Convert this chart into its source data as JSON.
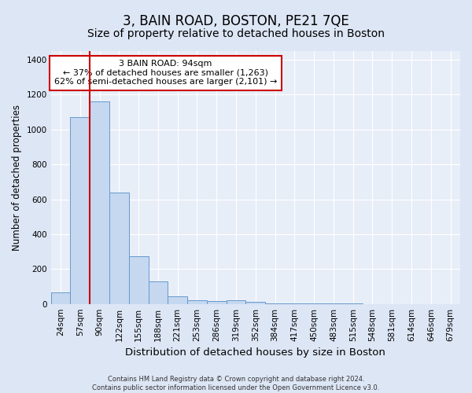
{
  "title": "3, BAIN ROAD, BOSTON, PE21 7QE",
  "subtitle": "Size of property relative to detached houses in Boston",
  "xlabel": "Distribution of detached houses by size in Boston",
  "ylabel": "Number of detached properties",
  "annotation_line1": "3 BAIN ROAD: 94sqm",
  "annotation_line2": "← 37% of detached houses are smaller (1,263)",
  "annotation_line3": "62% of semi-detached houses are larger (2,101) →",
  "footer_line1": "Contains HM Land Registry data © Crown copyright and database right 2024.",
  "footer_line2": "Contains public sector information licensed under the Open Government Licence v3.0.",
  "categories": [
    "24sqm",
    "57sqm",
    "90sqm",
    "122sqm",
    "155sqm",
    "188sqm",
    "221sqm",
    "253sqm",
    "286sqm",
    "319sqm",
    "352sqm",
    "384sqm",
    "417sqm",
    "450sqm",
    "483sqm",
    "515sqm",
    "548sqm",
    "581sqm",
    "614sqm",
    "646sqm",
    "679sqm"
  ],
  "values": [
    65,
    1070,
    1160,
    640,
    275,
    130,
    45,
    20,
    15,
    20,
    10,
    5,
    3,
    2,
    1,
    1,
    0,
    0,
    0,
    0,
    0
  ],
  "bar_color": "#c5d8f0",
  "bar_edge_color": "#6699cc",
  "red_line_index": 2,
  "red_line_color": "#cc0000",
  "annotation_box_edge_color": "#cc0000",
  "annotation_box_face_color": "#ffffff",
  "ylim": [
    0,
    1450
  ],
  "yticks": [
    0,
    200,
    400,
    600,
    800,
    1000,
    1200,
    1400
  ],
  "background_color": "#dde6f5",
  "plot_background_color": "#e8eef8",
  "grid_color": "#ffffff",
  "title_fontsize": 12,
  "subtitle_fontsize": 10,
  "tick_fontsize": 7.5,
  "ylabel_fontsize": 8.5,
  "xlabel_fontsize": 9.5
}
